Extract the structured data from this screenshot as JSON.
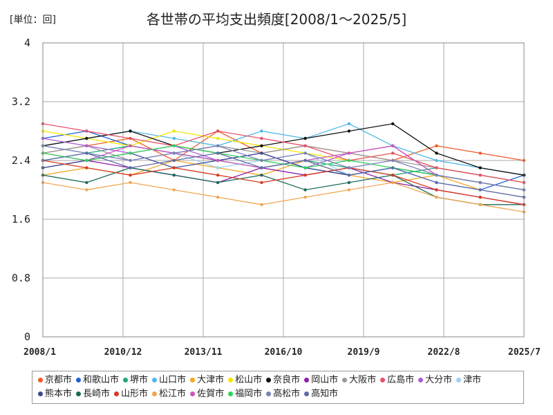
{
  "unit_label": "[単位：回]",
  "chart_data": {
    "type": "line",
    "title": "各世帯の平均支出頻度[2008/1～2025/5]",
    "xlabel": "",
    "ylabel": "",
    "x_start": "2008/1",
    "x_end": "2025/7",
    "x_ticks": [
      "2008/1",
      "2010/12",
      "2013/11",
      "2016/10",
      "2019/9",
      "2022/8",
      "2025/7"
    ],
    "ylim": [
      0,
      4
    ],
    "y_ticks": [
      0,
      0.8,
      1.6,
      2.4,
      3.2,
      4
    ],
    "grid": true,
    "legend_position": "bottom",
    "series": [
      {
        "name": "京都市",
        "color": "#f15a24",
        "values": [
          2.5,
          2.6,
          2.7,
          2.4,
          2.8,
          2.5,
          2.6,
          2.5,
          2.4,
          2.6,
          2.5,
          2.4
        ]
      },
      {
        "name": "和歌山市",
        "color": "#1f5fd6",
        "values": [
          2.7,
          2.8,
          2.6,
          2.5,
          2.4,
          2.5,
          2.3,
          2.2,
          2.3,
          2.1,
          2.0,
          2.2
        ]
      },
      {
        "name": "堺市",
        "color": "#1fa67a",
        "values": [
          2.4,
          2.5,
          2.6,
          2.5,
          2.4,
          2.3,
          2.4,
          2.3,
          2.2,
          2.3,
          2.2,
          2.1
        ]
      },
      {
        "name": "山口市",
        "color": "#4db8e8",
        "values": [
          2.6,
          2.7,
          2.8,
          2.7,
          2.6,
          2.8,
          2.7,
          2.9,
          2.6,
          2.4,
          2.3,
          2.2
        ]
      },
      {
        "name": "大津市",
        "color": "#f5a623",
        "values": [
          2.2,
          2.3,
          2.2,
          2.4,
          2.3,
          2.2,
          2.4,
          2.2,
          2.1,
          2.2,
          2.0,
          1.9
        ]
      },
      {
        "name": "松山市",
        "color": "#f2e600",
        "values": [
          2.8,
          2.7,
          2.6,
          2.8,
          2.7,
          2.6,
          2.5,
          2.4,
          2.5,
          2.3,
          2.2,
          2.1
        ]
      },
      {
        "name": "奈良市",
        "color": "#111111",
        "values": [
          2.6,
          2.7,
          2.8,
          2.6,
          2.5,
          2.6,
          2.7,
          2.8,
          2.9,
          2.5,
          2.3,
          2.2
        ]
      },
      {
        "name": "岡山市",
        "color": "#8e1fa8",
        "values": [
          2.3,
          2.4,
          2.3,
          2.2,
          2.1,
          2.3,
          2.2,
          2.3,
          2.1,
          2.0,
          1.9,
          1.8
        ]
      },
      {
        "name": "大阪市",
        "color": "#999999",
        "values": [
          2.5,
          2.6,
          2.4,
          2.5,
          2.6,
          2.5,
          2.6,
          2.5,
          2.4,
          2.3,
          2.2,
          2.1
        ]
      },
      {
        "name": "広島市",
        "color": "#e8506a",
        "values": [
          2.9,
          2.8,
          2.7,
          2.6,
          2.8,
          2.7,
          2.6,
          2.4,
          2.5,
          2.3,
          2.2,
          2.1
        ]
      },
      {
        "name": "大分市",
        "color": "#b25ad6",
        "values": [
          2.7,
          2.6,
          2.5,
          2.6,
          2.4,
          2.5,
          2.3,
          2.5,
          2.6,
          2.2,
          2.1,
          2.0
        ]
      },
      {
        "name": "津市",
        "color": "#9bd3f2",
        "values": [
          2.6,
          2.5,
          2.4,
          2.5,
          2.3,
          2.4,
          2.5,
          2.2,
          2.3,
          2.1,
          2.0,
          1.9
        ]
      },
      {
        "name": "熊本市",
        "color": "#3b4a8c",
        "values": [
          2.3,
          2.4,
          2.5,
          2.3,
          2.4,
          2.5,
          2.3,
          2.2,
          2.3,
          2.2,
          2.1,
          2.0
        ]
      },
      {
        "name": "長崎市",
        "color": "#1a6b5a",
        "values": [
          2.2,
          2.1,
          2.3,
          2.2,
          2.1,
          2.2,
          2.0,
          2.1,
          2.2,
          1.9,
          1.8,
          1.8
        ]
      },
      {
        "name": "山形市",
        "color": "#d63a20",
        "values": [
          2.4,
          2.3,
          2.2,
          2.3,
          2.2,
          2.1,
          2.2,
          2.3,
          2.2,
          2.0,
          1.9,
          1.8
        ]
      },
      {
        "name": "松江市",
        "color": "#f0a650",
        "values": [
          2.1,
          2.0,
          2.1,
          2.0,
          1.9,
          1.8,
          1.9,
          2.0,
          2.1,
          1.9,
          1.8,
          1.7
        ]
      },
      {
        "name": "佐賀市",
        "color": "#cc55bb",
        "values": [
          2.5,
          2.4,
          2.6,
          2.5,
          2.4,
          2.3,
          2.4,
          2.5,
          2.6,
          2.2,
          2.1,
          2.0
        ]
      },
      {
        "name": "福岡市",
        "color": "#2fd45a",
        "values": [
          2.5,
          2.4,
          2.5,
          2.6,
          2.5,
          2.4,
          2.3,
          2.4,
          2.3,
          2.2,
          2.1,
          2.0
        ]
      },
      {
        "name": "高松市",
        "color": "#7a7fb8",
        "values": [
          2.6,
          2.5,
          2.4,
          2.5,
          2.6,
          2.4,
          2.5,
          2.3,
          2.4,
          2.2,
          2.1,
          2.0
        ]
      },
      {
        "name": "高知市",
        "color": "#5d6aa8",
        "values": [
          2.4,
          2.5,
          2.3,
          2.4,
          2.5,
          2.3,
          2.4,
          2.2,
          2.3,
          2.1,
          2.0,
          1.9
        ]
      }
    ]
  }
}
